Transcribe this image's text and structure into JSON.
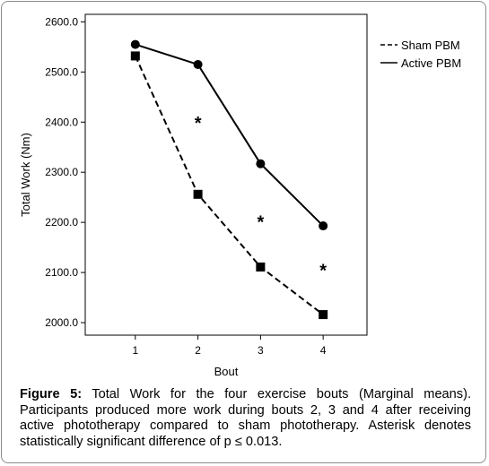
{
  "chart_data": {
    "type": "line",
    "xlabel": "Bout",
    "ylabel": "Total Work (Nm)",
    "x": [
      1,
      2,
      3,
      4
    ],
    "xticks": [
      "1",
      "2",
      "3",
      "4"
    ],
    "yticks": [
      "2000.0",
      "2100.0",
      "2200.0",
      "2300.0",
      "2400.0",
      "2500.0",
      "2600.0"
    ],
    "ylim": [
      1975,
      2615
    ],
    "xlim": [
      0.2,
      4.7
    ],
    "series": [
      {
        "name": "Sham PBM",
        "values": [
          2532,
          2256,
          2111,
          2016
        ],
        "line": "dashed",
        "marker": "square",
        "color": "#000000"
      },
      {
        "name": "Active PBM",
        "values": [
          2555,
          2515,
          2317,
          2193
        ],
        "line": "solid",
        "marker": "circle",
        "color": "#000000"
      }
    ],
    "annotations": [
      {
        "text": "*",
        "x": 2,
        "y": 2402
      },
      {
        "text": "*",
        "x": 3,
        "y": 2205
      },
      {
        "text": "*",
        "x": 4,
        "y": 2108
      }
    ],
    "legend_position": "top-right",
    "grid": false
  },
  "caption": {
    "label": "Figure 5:",
    "text": " Total Work for the four exercise bouts (Marginal means). Participants produced more work during bouts 2, 3 and 4 after receiving active phototherapy compared to sham phototherapy. Asterisk denotes statistically significant difference of p ≤ 0.013."
  }
}
